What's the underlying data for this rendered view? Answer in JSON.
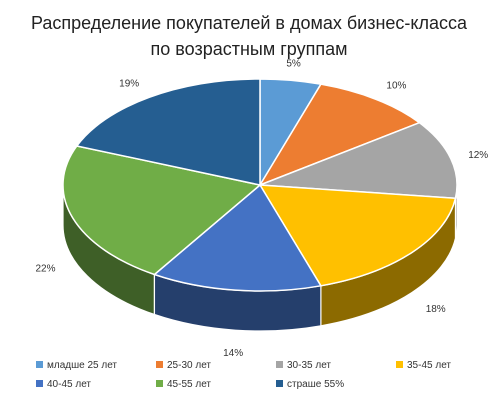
{
  "chart_data": {
    "type": "pie",
    "title_lines": [
      "Распределение покупателей в домах бизнес-класса",
      "по возрастным группам"
    ],
    "categories": [
      "младше  25 лет",
      "25-30 лет",
      "30-35 лет",
      "35-45 лет",
      "40-45 лет",
      "45-55 лет",
      "страше 55%"
    ],
    "values": [
      5,
      10,
      12,
      18,
      14,
      22,
      19
    ],
    "labels": [
      "5%",
      "10%",
      "12%",
      "18%",
      "14%",
      "22%",
      "19%"
    ],
    "colors": [
      "#5B9BD5",
      "#ED7D31",
      "#A5A5A5",
      "#FFC000",
      "#4472C4",
      "#70AD47",
      "#255E91"
    ],
    "legend_position": "bottom",
    "style": "3d"
  }
}
